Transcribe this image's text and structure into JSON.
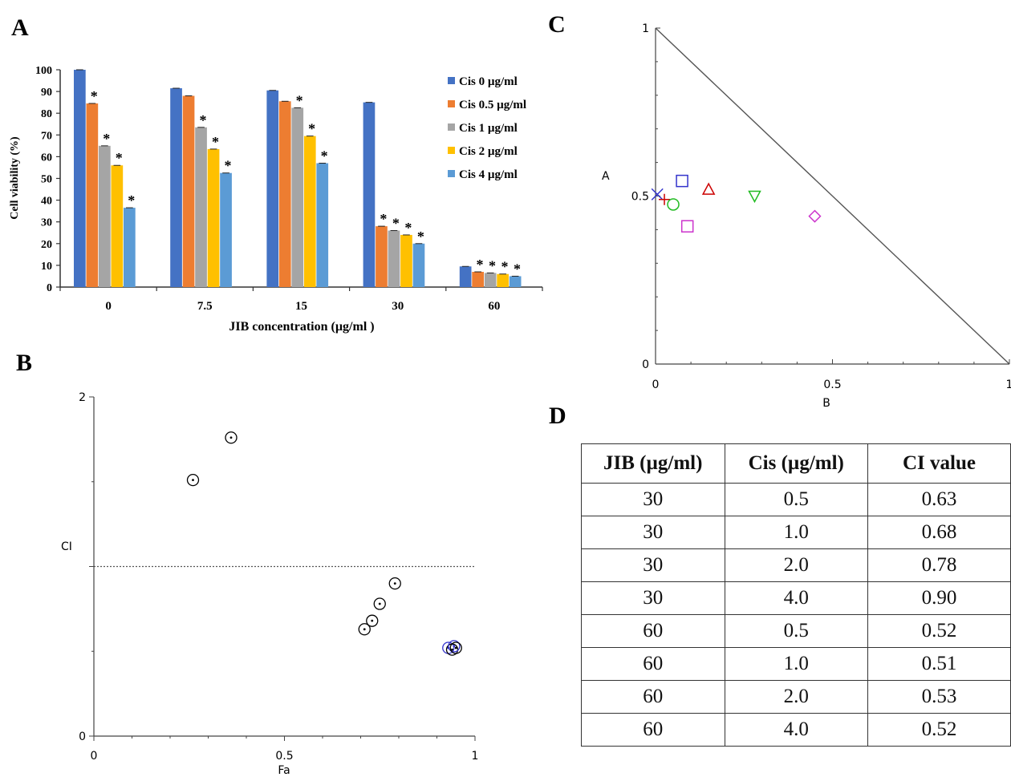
{
  "panels": {
    "A": "A",
    "B": "B",
    "C": "C",
    "D": "D"
  },
  "chart_data": [
    {
      "id": "A",
      "type": "bar",
      "ylabel": "Cell viability (%)",
      "xlabel": "JIB concentration (µg/ml )",
      "ylim": [
        0,
        100
      ],
      "yticks": [
        "0",
        "10",
        "20",
        "30",
        "40",
        "50",
        "60",
        "70",
        "80",
        "90",
        "100"
      ],
      "categories": [
        "0",
        "7.5",
        "15",
        "30",
        "60"
      ],
      "legend_position": "top-right",
      "series": [
        {
          "name": "Cis 0 µg/ml",
          "color": "#4472C4",
          "values": [
            100,
            91.5,
            90.5,
            85,
            9.5
          ],
          "stars": [
            false,
            false,
            false,
            false,
            false
          ]
        },
        {
          "name": "Cis 0.5 µg/ml",
          "color": "#ED7D31",
          "values": [
            84.5,
            88,
            85.5,
            28,
            7
          ],
          "stars": [
            true,
            false,
            false,
            true,
            true
          ]
        },
        {
          "name": "Cis 1 µg/ml",
          "color": "#A5A5A5",
          "values": [
            65,
            73.5,
            82.5,
            26,
            6.5
          ],
          "stars": [
            true,
            true,
            true,
            true,
            true
          ]
        },
        {
          "name": "Cis 2 µg/ml",
          "color": "#FFC000",
          "values": [
            56,
            63.5,
            69.5,
            24,
            6
          ],
          "stars": [
            true,
            true,
            true,
            true,
            true
          ]
        },
        {
          "name": "Cis 4 µg/ml",
          "color": "#5B9BD5",
          "values": [
            36.5,
            52.5,
            57,
            20,
            5
          ],
          "stars": [
            true,
            true,
            true,
            true,
            true
          ]
        }
      ],
      "star_symbol": "*"
    },
    {
      "id": "B",
      "type": "scatter",
      "xlabel": "Fa",
      "ylabel": "CI",
      "xlim": [
        0,
        1
      ],
      "ylim": [
        0,
        2
      ],
      "xticks": [
        "0",
        "0.5",
        "1"
      ],
      "yticks": [
        "0",
        "2"
      ],
      "reference_line": 1,
      "points": [
        {
          "x": 0.26,
          "y": 1.51,
          "color": "#000000"
        },
        {
          "x": 0.36,
          "y": 1.76,
          "color": "#000000"
        },
        {
          "x": 0.71,
          "y": 0.63,
          "color": "#000000"
        },
        {
          "x": 0.73,
          "y": 0.68,
          "color": "#000000"
        },
        {
          "x": 0.75,
          "y": 0.78,
          "color": "#000000"
        },
        {
          "x": 0.79,
          "y": 0.9,
          "color": "#000000"
        },
        {
          "x": 0.93,
          "y": 0.52,
          "color": "#3333CC"
        },
        {
          "x": 0.94,
          "y": 0.51,
          "color": "#000000"
        },
        {
          "x": 0.945,
          "y": 0.53,
          "color": "#3333CC"
        },
        {
          "x": 0.95,
          "y": 0.52,
          "color": "#000000"
        }
      ]
    },
    {
      "id": "C",
      "type": "scatter",
      "xlabel": "B",
      "ylabel": "A",
      "xlim": [
        0,
        1
      ],
      "ylim": [
        0,
        1
      ],
      "xticks": [
        "0",
        "0.5",
        "1"
      ],
      "yticks": [
        "0",
        "0.5",
        "1"
      ],
      "isobologram_line": [
        [
          0,
          1
        ],
        [
          1,
          0
        ]
      ],
      "points": [
        {
          "x": 0.005,
          "y": 0.505,
          "marker": "x",
          "color": "#3333CC"
        },
        {
          "x": 0.025,
          "y": 0.49,
          "marker": "plus",
          "color": "#CC0000"
        },
        {
          "x": 0.05,
          "y": 0.475,
          "marker": "circle",
          "color": "#22BB22"
        },
        {
          "x": 0.075,
          "y": 0.545,
          "marker": "square",
          "color": "#3333CC"
        },
        {
          "x": 0.09,
          "y": 0.41,
          "marker": "square",
          "color": "#CC33CC"
        },
        {
          "x": 0.15,
          "y": 0.52,
          "marker": "triangle-up",
          "color": "#CC0000"
        },
        {
          "x": 0.28,
          "y": 0.5,
          "marker": "triangle-down",
          "color": "#22BB22"
        },
        {
          "x": 0.45,
          "y": 0.44,
          "marker": "diamond",
          "color": "#CC33CC"
        }
      ]
    },
    {
      "id": "D",
      "type": "table",
      "columns": [
        "JIB (µg/ml)",
        "Cis (µg/ml)",
        "CI value"
      ],
      "rows": [
        [
          "30",
          "0.5",
          "0.63"
        ],
        [
          "30",
          "1.0",
          "0.68"
        ],
        [
          "30",
          "2.0",
          "0.78"
        ],
        [
          "30",
          "4.0",
          "0.90"
        ],
        [
          "60",
          "0.5",
          "0.52"
        ],
        [
          "60",
          "1.0",
          "0.51"
        ],
        [
          "60",
          "2.0",
          "0.53"
        ],
        [
          "60",
          "4.0",
          "0.52"
        ]
      ]
    }
  ]
}
